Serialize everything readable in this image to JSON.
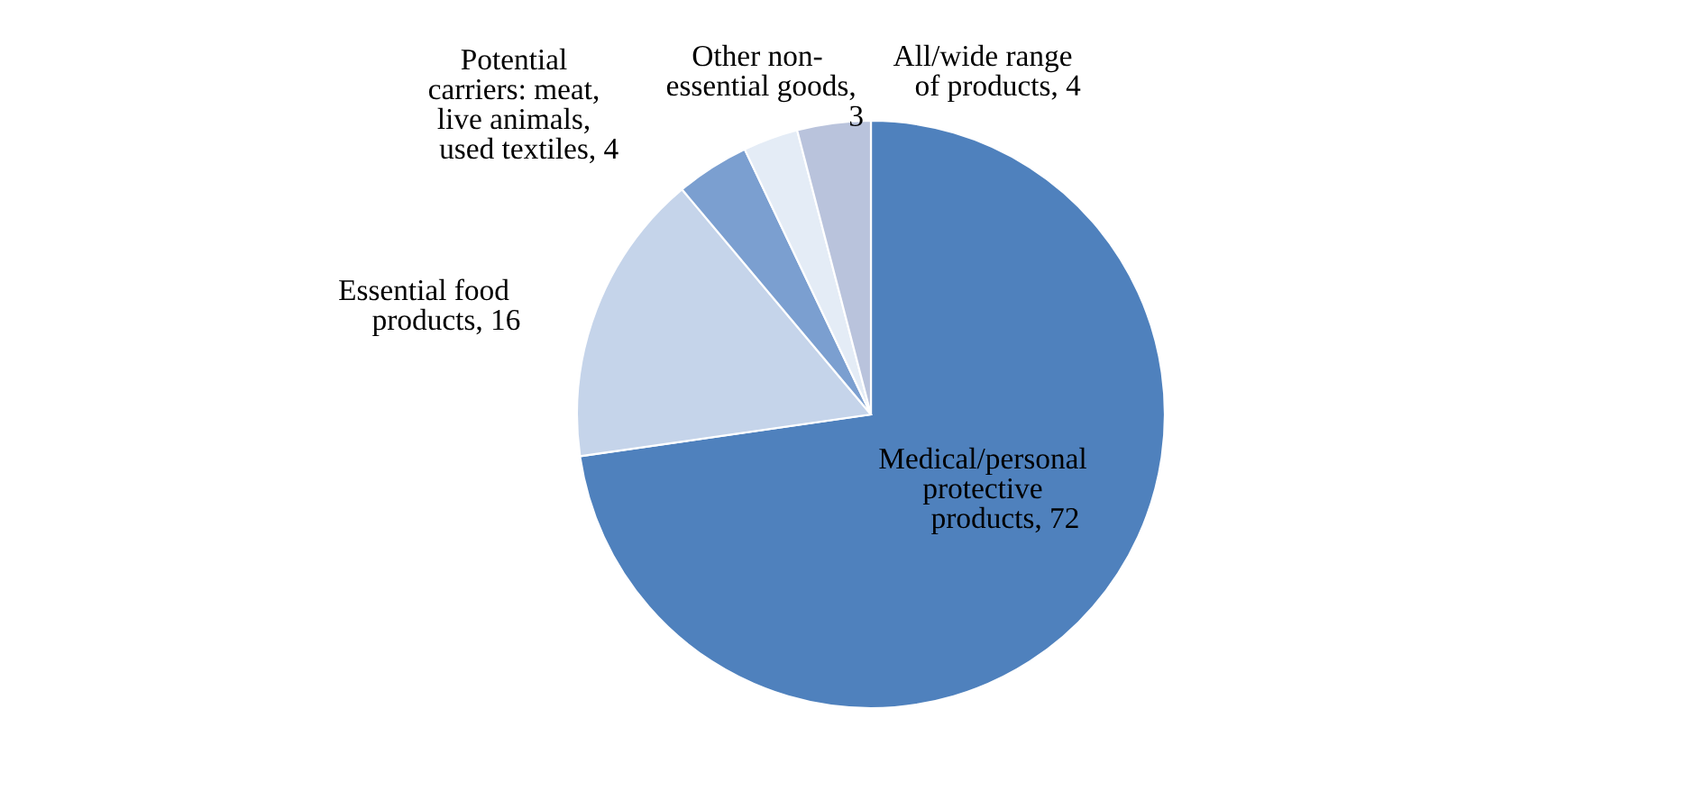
{
  "chart_data": {
    "type": "pie",
    "categories": [
      "Medical/personal\nprotective\nproducts",
      "Essential food\nproducts",
      "Potential\ncarriers: meat,\nlive animals,\nused textiles",
      "Other non-\nessential goods",
      "All/wide range\nof products"
    ],
    "values": [
      72,
      16,
      4,
      3,
      4
    ],
    "colors": [
      "#4f81bd",
      "#c5d4ea",
      "#7b9fd0",
      "#e4ecf6",
      "#b9c3dc"
    ],
    "value_labels": [
      ", 72",
      ", 16",
      ", 4",
      ",\n3",
      ", 4"
    ]
  }
}
